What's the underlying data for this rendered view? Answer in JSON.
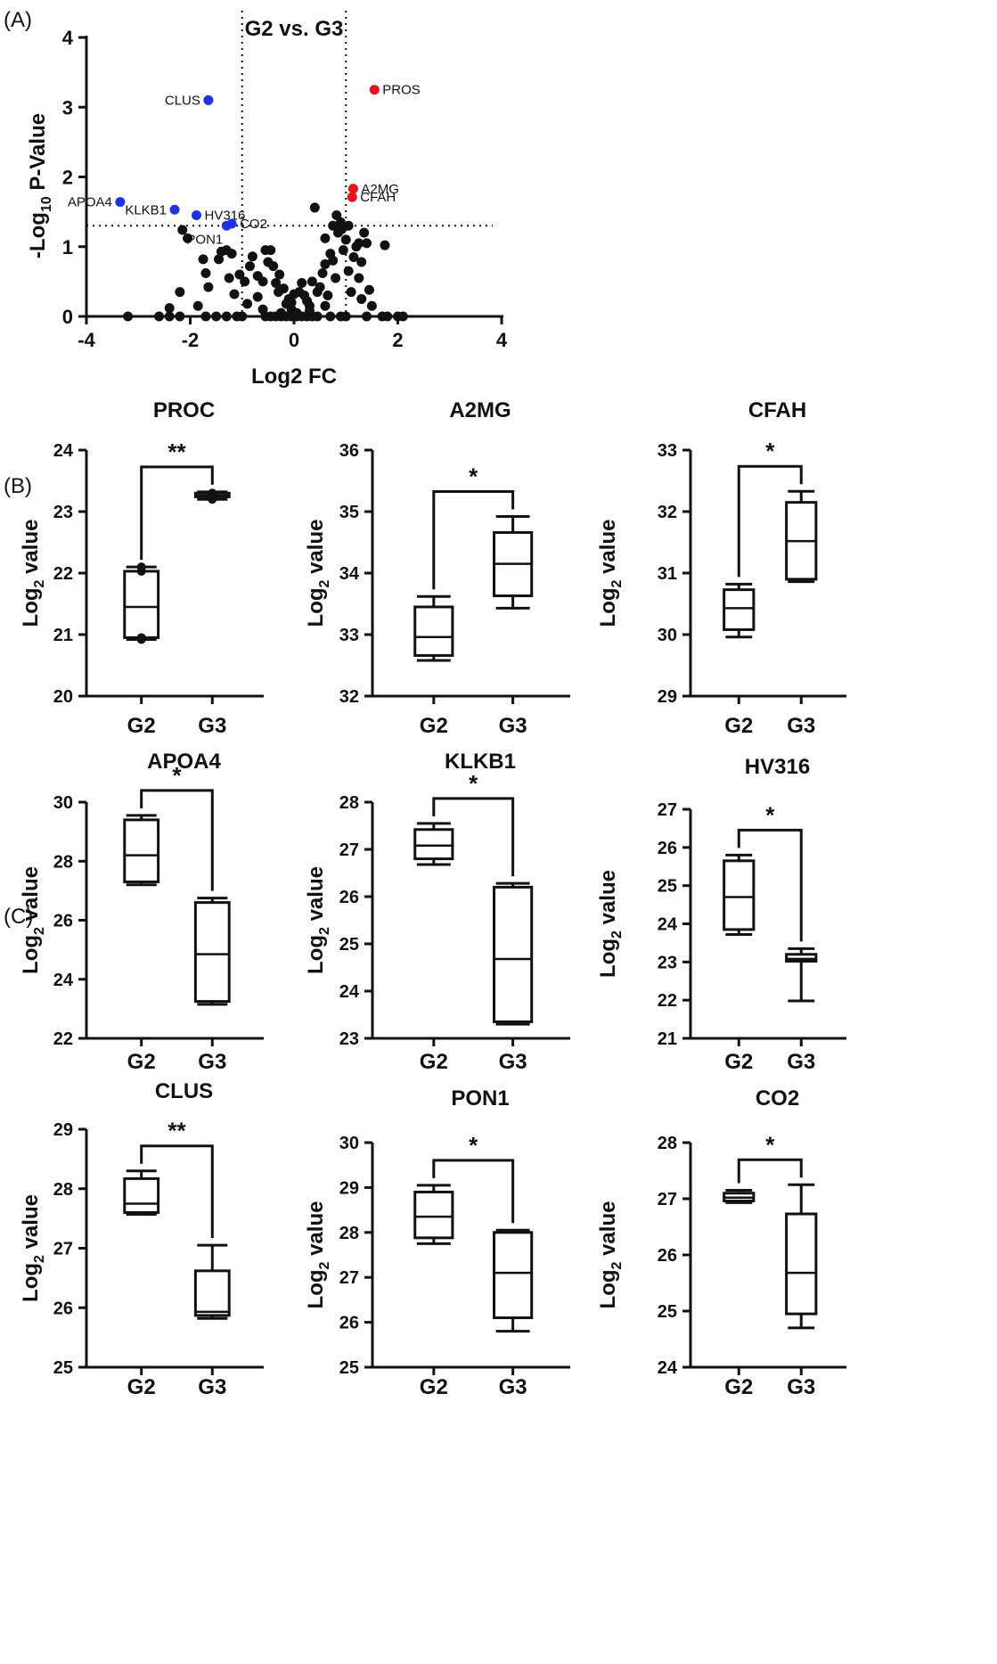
{
  "panel_labels": {
    "a": "(A)",
    "b": "(B)",
    "c": "(C)"
  },
  "colors": {
    "up": "#e8121b",
    "down": "#1f33e6",
    "ns": "#111111"
  },
  "chart_data": [
    {
      "id": "volcano",
      "type": "scatter",
      "title": "G2 vs. G3",
      "xlabel": "Log2 FC",
      "ylabel_main": "-Log",
      "ylabel_sub": "10",
      "ylabel_tail": " P-Value",
      "xlim": [
        -4,
        4
      ],
      "ylim": [
        0,
        4
      ],
      "xticks": [
        "-4",
        "-2",
        "0",
        "2",
        "4"
      ],
      "yticks": [
        "0",
        "1",
        "2",
        "3",
        "4"
      ],
      "thresholds": {
        "x": [
          -1,
          1
        ],
        "y": 1.3
      },
      "grid": false,
      "labeled_points": [
        {
          "label": "CLUS",
          "x": -1.65,
          "y": 3.1,
          "group": "down",
          "label_side": "left"
        },
        {
          "label": "PROS",
          "x": 1.55,
          "y": 3.25,
          "group": "up",
          "label_side": "right"
        },
        {
          "label": "APOA4",
          "x": -3.35,
          "y": 1.64,
          "group": "down",
          "label_side": "left"
        },
        {
          "label": "KLKB1",
          "x": -2.3,
          "y": 1.53,
          "group": "down",
          "label_side": "left"
        },
        {
          "label": "HV316",
          "x": -1.88,
          "y": 1.45,
          "group": "down",
          "label_side": "right"
        },
        {
          "label": "CO2",
          "x": -1.2,
          "y": 1.33,
          "group": "down",
          "label_side": "right"
        },
        {
          "label": "PON1",
          "x": -1.3,
          "y": 1.3,
          "group": "down",
          "label_side": "below"
        },
        {
          "label": "A2MG",
          "x": 1.14,
          "y": 1.83,
          "group": "up",
          "label_side": "right"
        },
        {
          "label": "CFAH",
          "x": 1.12,
          "y": 1.71,
          "group": "up",
          "label_side": "right"
        }
      ],
      "other_points": [
        [
          -3.2,
          0
        ],
        [
          -2.6,
          0
        ],
        [
          -2.4,
          0
        ],
        [
          -2.2,
          0
        ],
        [
          -1.7,
          0
        ],
        [
          -1.5,
          0
        ],
        [
          -1.3,
          0
        ],
        [
          -1.1,
          0
        ],
        [
          -1.0,
          0
        ],
        [
          -0.55,
          0
        ],
        [
          -0.45,
          0
        ],
        [
          -0.35,
          0
        ],
        [
          -0.25,
          0
        ],
        [
          -0.15,
          0
        ],
        [
          -0.05,
          0
        ],
        [
          0.05,
          0
        ],
        [
          0.15,
          0
        ],
        [
          0.25,
          0
        ],
        [
          0.35,
          0
        ],
        [
          0.45,
          0
        ],
        [
          0.7,
          0
        ],
        [
          0.9,
          0
        ],
        [
          1.0,
          0
        ],
        [
          1.4,
          0
        ],
        [
          1.7,
          0
        ],
        [
          1.8,
          0
        ],
        [
          2.0,
          0
        ],
        [
          2.1,
          0
        ],
        [
          -2.15,
          1.24
        ],
        [
          -2.05,
          1.12
        ],
        [
          -1.45,
          0.82
        ],
        [
          -1.4,
          0.93
        ],
        [
          -1.3,
          0.95
        ],
        [
          -1.2,
          0.9
        ],
        [
          -1.05,
          0.6
        ],
        [
          -0.95,
          0.5
        ],
        [
          -0.85,
          0.72
        ],
        [
          -0.8,
          0.86
        ],
        [
          -0.7,
          0.58
        ],
        [
          -0.6,
          0.5
        ],
        [
          -0.55,
          0.95
        ],
        [
          -0.5,
          0.78
        ],
        [
          -0.4,
          0.72
        ],
        [
          -0.35,
          0.48
        ],
        [
          -0.3,
          0.35
        ],
        [
          -0.2,
          0.4
        ],
        [
          -0.15,
          0.18
        ],
        [
          -0.1,
          0.25
        ],
        [
          -0.05,
          0.1
        ],
        [
          0.0,
          0.32
        ],
        [
          0.1,
          0.35
        ],
        [
          0.15,
          0.48
        ],
        [
          0.2,
          0.3
        ],
        [
          0.25,
          0.22
        ],
        [
          0.3,
          0.15
        ],
        [
          0.35,
          0.5
        ],
        [
          0.45,
          0.35
        ],
        [
          0.5,
          0.42
        ],
        [
          0.55,
          0.62
        ],
        [
          0.6,
          0.75
        ],
        [
          0.65,
          0.3
        ],
        [
          0.7,
          0.9
        ],
        [
          0.75,
          0.8
        ],
        [
          0.8,
          0.55
        ],
        [
          0.85,
          1.2
        ],
        [
          0.9,
          1.35
        ],
        [
          0.95,
          0.95
        ],
        [
          1.0,
          1.1
        ],
        [
          1.05,
          0.65
        ],
        [
          0.82,
          1.45
        ],
        [
          0.75,
          1.3
        ],
        [
          0.6,
          1.12
        ],
        [
          -1.75,
          0.82
        ],
        [
          -1.7,
          0.62
        ],
        [
          -1.65,
          0.42
        ],
        [
          -1.25,
          0.55
        ],
        [
          -1.15,
          0.32
        ],
        [
          -0.9,
          0.18
        ],
        [
          -0.7,
          0.28
        ],
        [
          -1.85,
          0.15
        ],
        [
          -2.2,
          0.35
        ],
        [
          -2.4,
          0.12
        ],
        [
          1.15,
          0.85
        ],
        [
          1.2,
          1.0
        ],
        [
          1.3,
          0.78
        ],
        [
          1.1,
          0.35
        ],
        [
          1.25,
          0.55
        ],
        [
          1.3,
          0.25
        ],
        [
          1.45,
          0.38
        ],
        [
          1.5,
          0.15
        ],
        [
          1.75,
          1.02
        ],
        [
          1.35,
          1.2
        ],
        [
          1.25,
          1.05
        ],
        [
          0.4,
          1.56
        ],
        [
          0.6,
          0.15
        ],
        [
          -0.6,
          0.1
        ],
        [
          -0.25,
          0.05
        ],
        [
          0.05,
          0.05
        ],
        [
          -0.05,
          0.2
        ],
        [
          0.3,
          0.08
        ],
        [
          -0.45,
          0.95
        ],
        [
          -0.28,
          0.6
        ],
        [
          1.4,
          1.05
        ],
        [
          1.05,
          1.3
        ],
        [
          0.92,
          1.25
        ]
      ]
    },
    {
      "id": "box-proc",
      "type": "box",
      "title": "PROC",
      "ylabel_main": "Log",
      "ylabel_sub": "2",
      "ylabel_tail": " value",
      "categories": [
        "G2",
        "G3"
      ],
      "ylim": [
        20,
        24
      ],
      "yticks": [
        "20",
        "21",
        "22",
        "23",
        "24"
      ],
      "boxes": [
        {
          "min": 20.92,
          "q1": 20.95,
          "median": 21.45,
          "q3": 22.03,
          "max": 22.1,
          "points": [
            20.92,
            20.95,
            22.03,
            22.1
          ]
        },
        {
          "min": 23.2,
          "q1": 23.24,
          "median": 23.26,
          "q3": 23.3,
          "max": 23.32,
          "points": [
            23.2,
            23.24,
            23.28,
            23.3
          ]
        }
      ],
      "significance": "**"
    },
    {
      "id": "box-a2mg",
      "type": "box",
      "title": "A2MG",
      "ylabel_main": "Log",
      "ylabel_sub": "2",
      "ylabel_tail": " value",
      "categories": [
        "G2",
        "G3"
      ],
      "ylim": [
        32,
        36
      ],
      "yticks": [
        "32",
        "33",
        "34",
        "35",
        "36"
      ],
      "boxes": [
        {
          "min": 32.58,
          "q1": 32.66,
          "median": 32.96,
          "q3": 33.45,
          "max": 33.62
        },
        {
          "min": 33.43,
          "q1": 33.63,
          "median": 34.15,
          "q3": 34.66,
          "max": 34.92
        }
      ],
      "significance": "*"
    },
    {
      "id": "box-cfah",
      "type": "box",
      "title": "CFAH",
      "ylabel_main": "Log",
      "ylabel_sub": "2",
      "ylabel_tail": " value",
      "categories": [
        "G2",
        "G3"
      ],
      "ylim": [
        29,
        33
      ],
      "yticks": [
        "29",
        "30",
        "31",
        "32",
        "33"
      ],
      "boxes": [
        {
          "min": 29.96,
          "q1": 30.08,
          "median": 30.43,
          "q3": 30.73,
          "max": 30.82
        },
        {
          "min": 30.86,
          "q1": 30.9,
          "median": 31.52,
          "q3": 32.15,
          "max": 32.33
        }
      ],
      "significance": "*"
    },
    {
      "id": "box-apoa4",
      "type": "box",
      "title": "APOA4",
      "ylabel_main": "Log",
      "ylabel_sub": "2",
      "ylabel_tail": " value",
      "categories": [
        "G2",
        "G3"
      ],
      "ylim": [
        22,
        30
      ],
      "yticks": [
        "22",
        "24",
        "26",
        "28",
        "30"
      ],
      "boxes": [
        {
          "min": 27.2,
          "q1": 27.3,
          "median": 28.2,
          "q3": 29.4,
          "max": 29.55
        },
        {
          "min": 23.15,
          "q1": 23.25,
          "median": 24.85,
          "q3": 26.6,
          "max": 26.75
        }
      ],
      "significance": "*"
    },
    {
      "id": "box-klkb1",
      "type": "box",
      "title": "KLKB1",
      "ylabel_main": "Log",
      "ylabel_sub": "2",
      "ylabel_tail": " value",
      "categories": [
        "G2",
        "G3"
      ],
      "ylim": [
        23,
        28
      ],
      "yticks": [
        "23",
        "24",
        "25",
        "26",
        "27",
        "28"
      ],
      "boxes": [
        {
          "min": 26.68,
          "q1": 26.8,
          "median": 27.08,
          "q3": 27.42,
          "max": 27.55
        },
        {
          "min": 23.3,
          "q1": 23.35,
          "median": 24.68,
          "q3": 26.2,
          "max": 26.28
        }
      ],
      "significance": "*"
    },
    {
      "id": "box-hv316",
      "type": "box",
      "title": "HV316",
      "ylabel_main": "Log",
      "ylabel_sub": "2",
      "ylabel_tail": " value",
      "categories": [
        "G2",
        "G3"
      ],
      "ylim": [
        21,
        27
      ],
      "yticks": [
        "21",
        "22",
        "23",
        "24",
        "25",
        "26",
        "27"
      ],
      "boxes": [
        {
          "min": 23.72,
          "q1": 23.85,
          "median": 24.7,
          "q3": 25.65,
          "max": 25.8
        },
        {
          "min": 21.98,
          "q1": 23.02,
          "median": 23.08,
          "q3": 23.2,
          "max": 23.35
        }
      ],
      "significance": "*"
    },
    {
      "id": "box-clus",
      "type": "box",
      "title": "CLUS",
      "ylabel_main": "Log",
      "ylabel_sub": "2",
      "ylabel_tail": " value",
      "categories": [
        "G2",
        "G3"
      ],
      "ylim": [
        25,
        29
      ],
      "yticks": [
        "25",
        "26",
        "27",
        "28",
        "29"
      ],
      "boxes": [
        {
          "min": 27.57,
          "q1": 27.6,
          "median": 27.75,
          "q3": 28.17,
          "max": 28.3
        },
        {
          "min": 25.82,
          "q1": 25.87,
          "median": 25.93,
          "q3": 26.62,
          "max": 27.05
        }
      ],
      "significance": "**"
    },
    {
      "id": "box-pon1",
      "type": "box",
      "title": "PON1",
      "ylabel_main": "Log",
      "ylabel_sub": "2",
      "ylabel_tail": " value",
      "categories": [
        "G2",
        "G3"
      ],
      "ylim": [
        25,
        30
      ],
      "yticks": [
        "25",
        "26",
        "27",
        "28",
        "29",
        "30"
      ],
      "boxes": [
        {
          "min": 27.75,
          "q1": 27.88,
          "median": 28.35,
          "q3": 28.9,
          "max": 29.05
        },
        {
          "min": 25.8,
          "q1": 26.1,
          "median": 27.1,
          "q3": 28.0,
          "max": 28.05
        }
      ],
      "significance": "*"
    },
    {
      "id": "box-co2",
      "type": "box",
      "title": "CO2",
      "ylabel_main": "Log",
      "ylabel_sub": "2",
      "ylabel_tail": " value",
      "categories": [
        "G2",
        "G3"
      ],
      "ylim": [
        24,
        28
      ],
      "yticks": [
        "24",
        "25",
        "26",
        "27",
        "28"
      ],
      "boxes": [
        {
          "min": 26.93,
          "q1": 26.96,
          "median": 27.02,
          "q3": 27.1,
          "max": 27.15
        },
        {
          "min": 24.7,
          "q1": 24.95,
          "median": 25.68,
          "q3": 26.73,
          "max": 27.25
        }
      ],
      "significance": "*"
    }
  ]
}
